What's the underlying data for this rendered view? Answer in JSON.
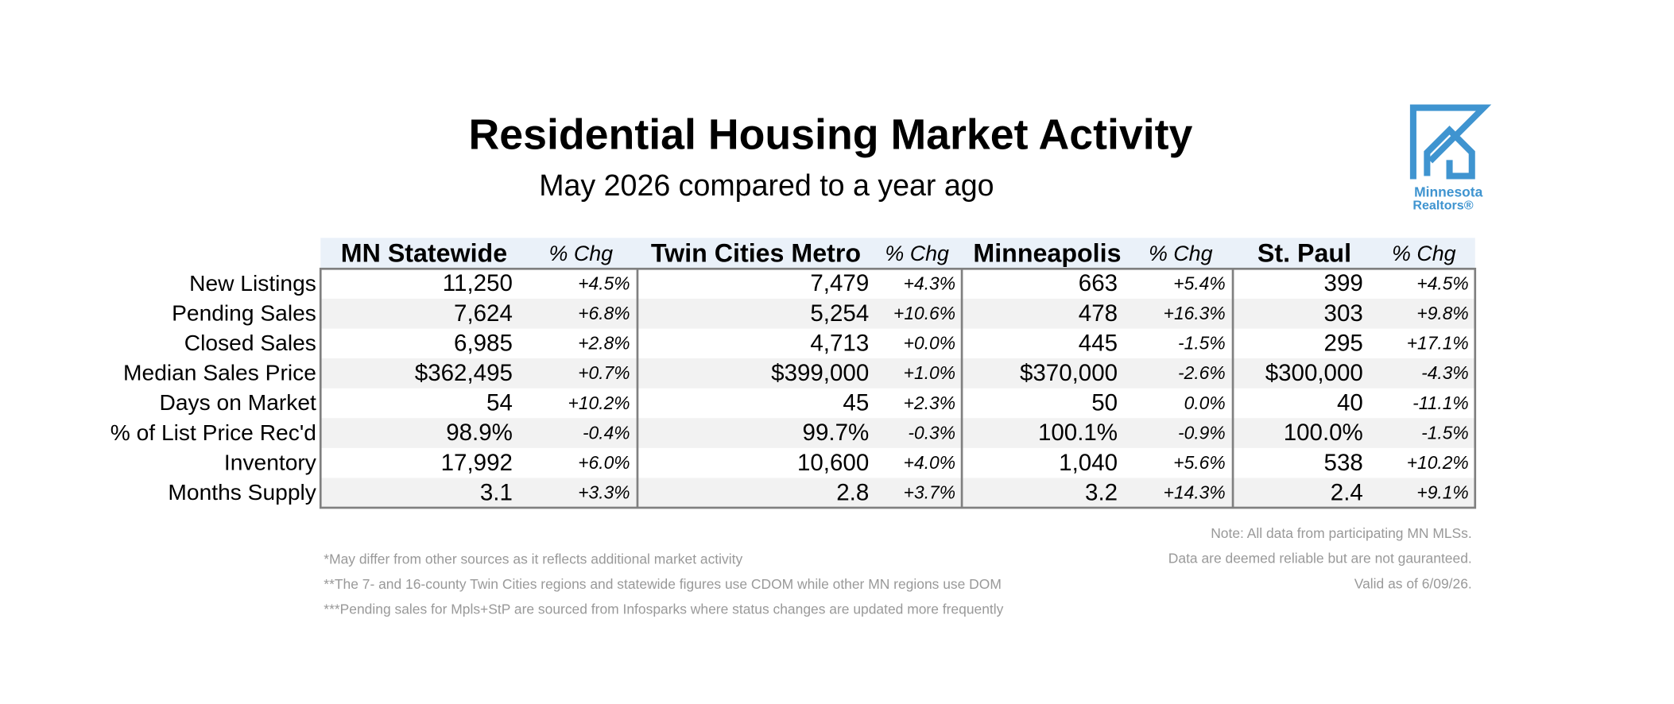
{
  "header": {
    "title": "Residential Housing Market Activity",
    "subtitle": "May 2026 compared to a year ago"
  },
  "logo": {
    "line1": "Minnesota",
    "line2": "Realtors®"
  },
  "table": {
    "columns": [
      "MN Statewide",
      "% Chg",
      "Twin Cities Metro",
      "% Chg",
      "Minneapolis",
      "% Chg",
      "St. Paul",
      "% Chg"
    ],
    "rows": [
      {
        "label": "New Listings",
        "cells": [
          "11,250",
          "+4.5%",
          "7,479",
          "+4.3%",
          "663",
          "+5.4%",
          "399",
          "+4.5%"
        ]
      },
      {
        "label": "Pending Sales",
        "cells": [
          "7,624",
          "+6.8%",
          "5,254",
          "+10.6%",
          "478",
          "+16.3%",
          "303",
          "+9.8%"
        ]
      },
      {
        "label": "Closed Sales",
        "cells": [
          "6,985",
          "+2.8%",
          "4,713",
          "+0.0%",
          "445",
          "-1.5%",
          "295",
          "+17.1%"
        ]
      },
      {
        "label": "Median Sales Price",
        "cells": [
          "$362,495",
          "+0.7%",
          "$399,000",
          "+1.0%",
          "$370,000",
          "-2.6%",
          "$300,000",
          "-4.3%"
        ]
      },
      {
        "label": "Days on Market",
        "cells": [
          "54",
          "+10.2%",
          "45",
          "+2.3%",
          "50",
          "0.0%",
          "40",
          "-11.1%"
        ]
      },
      {
        "label": "% of List Price Rec'd",
        "cells": [
          "98.9%",
          "-0.4%",
          "99.7%",
          "-0.3%",
          "100.1%",
          "-0.9%",
          "100.0%",
          "-1.5%"
        ]
      },
      {
        "label": "Inventory",
        "cells": [
          "17,992",
          "+6.0%",
          "10,600",
          "+4.0%",
          "1,040",
          "+5.6%",
          "538",
          "+10.2%"
        ]
      },
      {
        "label": "Months Supply",
        "cells": [
          "3.1",
          "+3.3%",
          "2.8",
          "+3.7%",
          "3.2",
          "+14.3%",
          "2.4",
          "+9.1%"
        ]
      }
    ]
  },
  "notes_left": [
    "*May differ from other sources as it reflects additional market activity",
    "**The 7- and 16-county Twin Cities regions and statewide figures use CDOM while other MN regions use DOM",
    "***Pending sales for Mpls+StP are sourced from Infosparks where status changes are updated more frequently"
  ],
  "notes_right": [
    "Note:  All data from participating MN MLSs.",
    "Data are deemed reliable but are not gauranteed.",
    "Valid as of 6/09/26."
  ]
}
